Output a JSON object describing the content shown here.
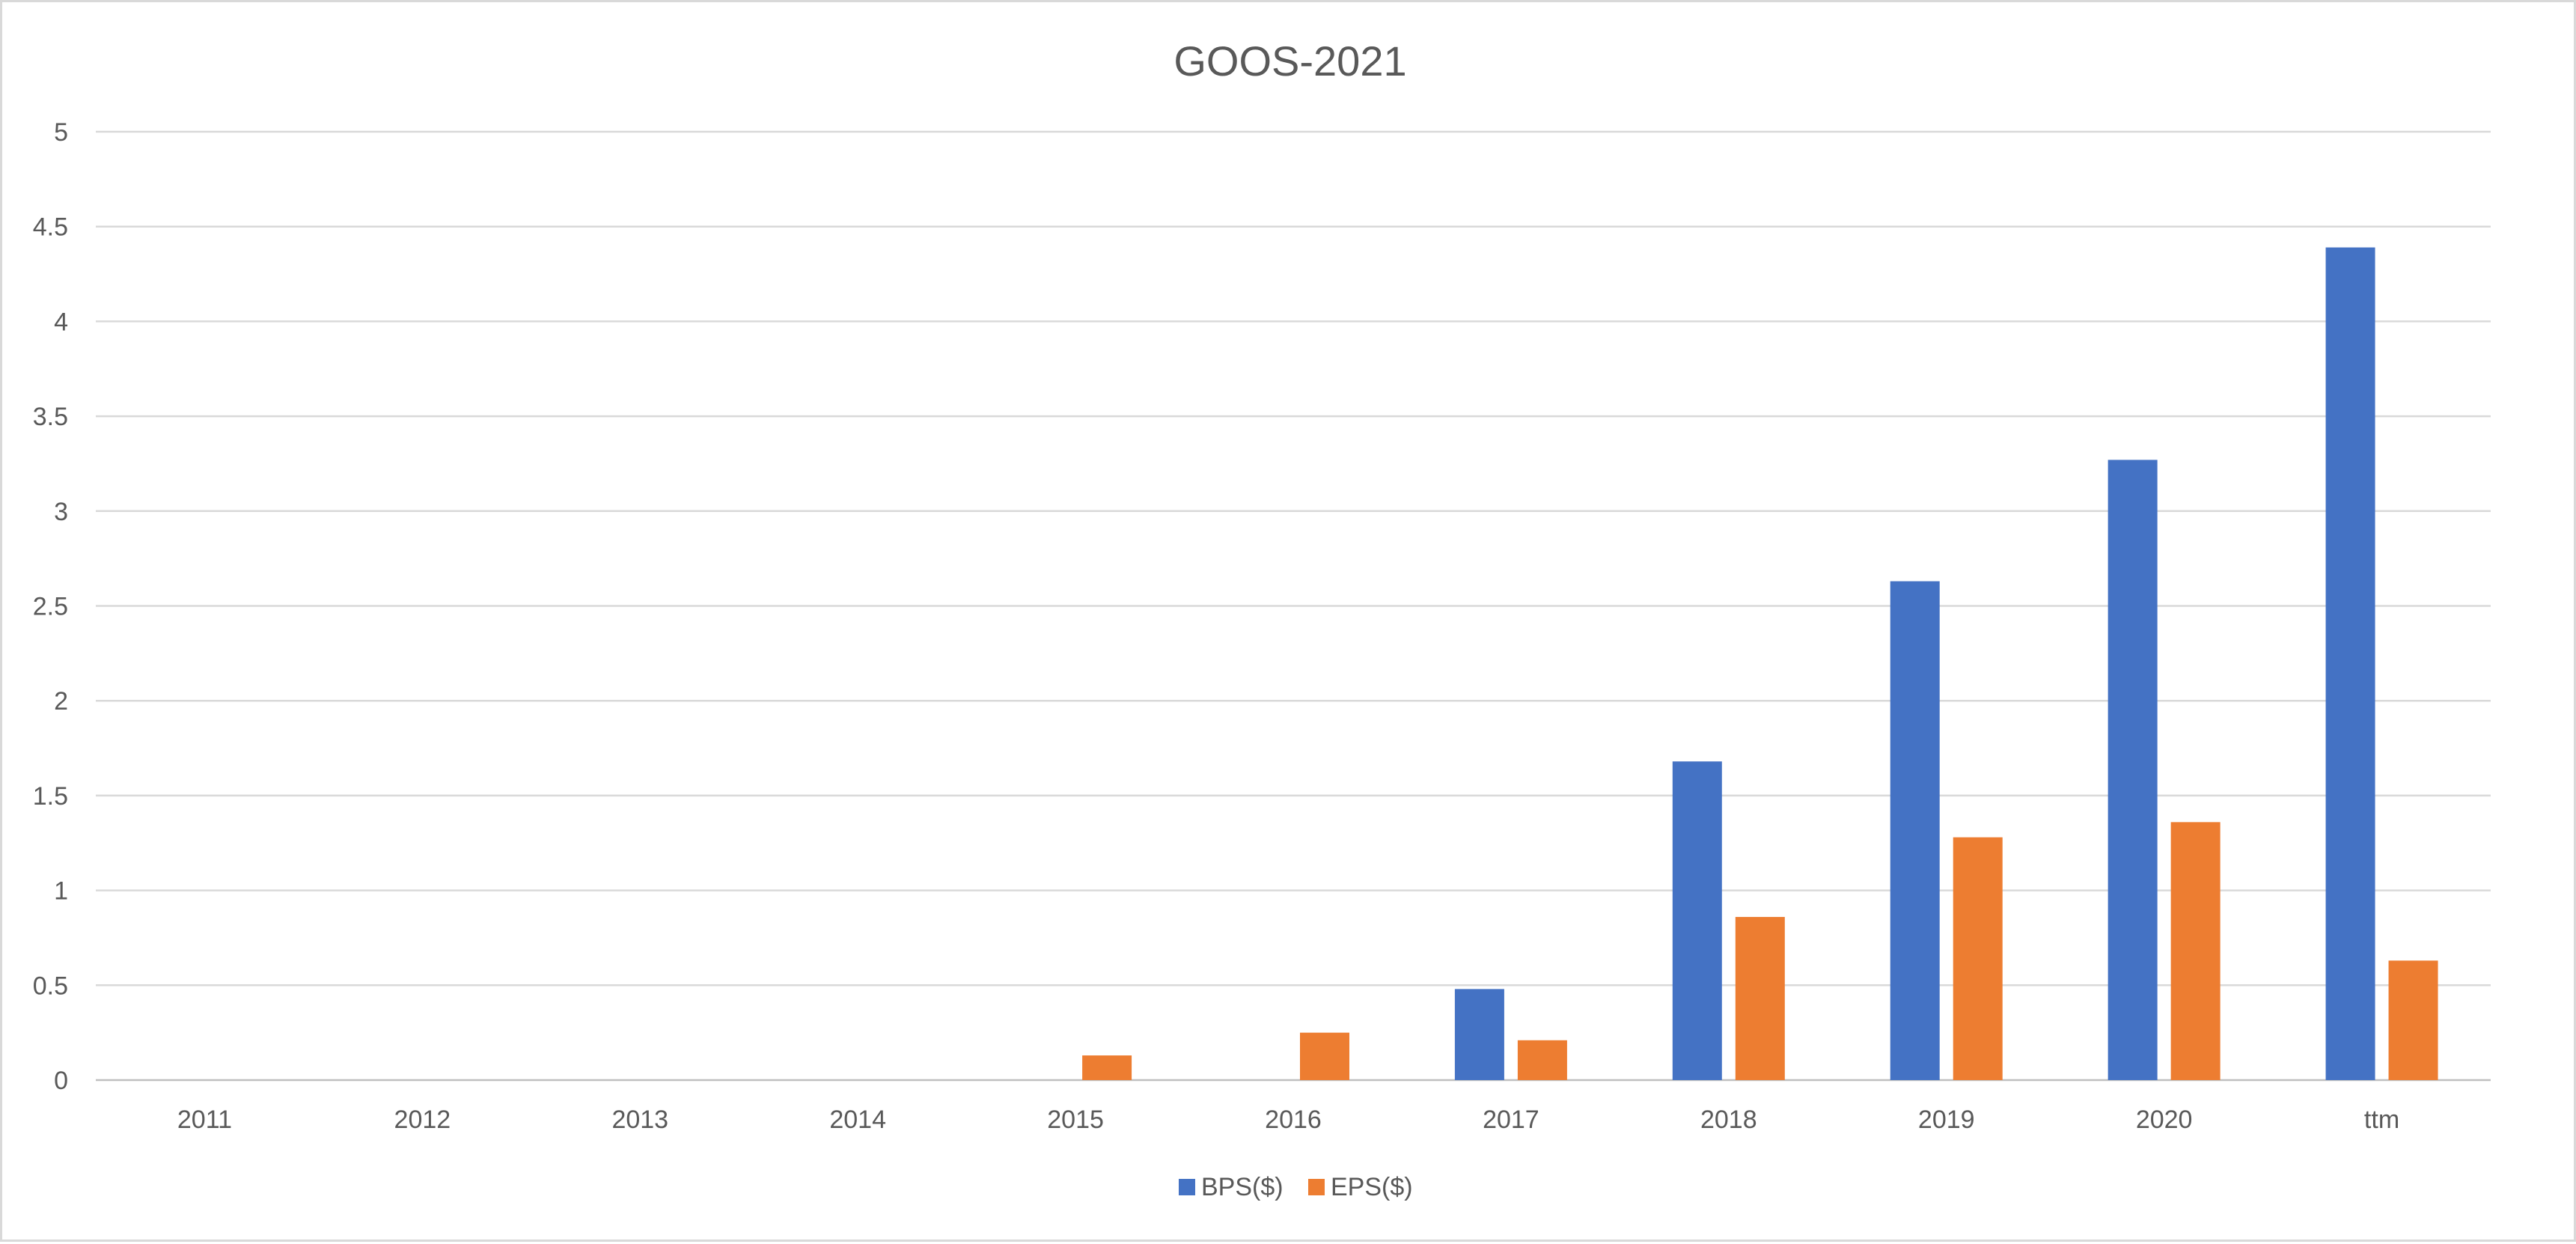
{
  "chart_data": {
    "type": "bar",
    "title": "GOOS-2021",
    "xlabel": "",
    "ylabel": "",
    "categories": [
      "2011",
      "2012",
      "2013",
      "2014",
      "2015",
      "2016",
      "2017",
      "2018",
      "2019",
      "2020",
      "ttm"
    ],
    "series": [
      {
        "name": "BPS($)",
        "color": "#4472c4",
        "values": [
          0,
          0,
          0,
          0,
          0,
          0,
          0.48,
          1.68,
          2.63,
          3.27,
          4.39
        ]
      },
      {
        "name": "EPS($)",
        "color": "#ed7d31",
        "values": [
          0,
          0,
          0,
          0,
          0.13,
          0.25,
          0.21,
          0.86,
          1.28,
          1.36,
          0.63
        ]
      }
    ],
    "ylim": [
      0,
      5
    ],
    "yticks": [
      "0",
      "0.5",
      "1",
      "1.5",
      "2",
      "2.5",
      "3",
      "3.5",
      "4",
      "4.5",
      "5"
    ],
    "grid": true,
    "legend_position": "bottom"
  }
}
